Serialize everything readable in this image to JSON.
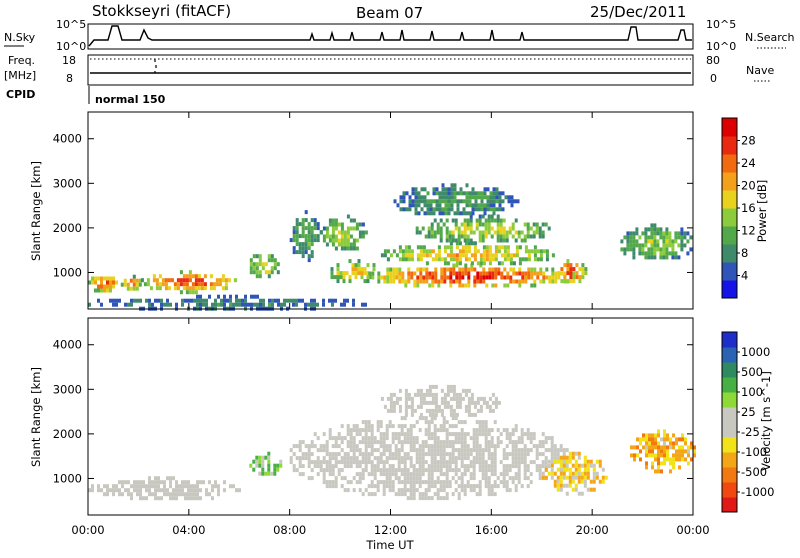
{
  "header": {
    "title": "Stokkseyri (fitACF)",
    "beam": "Beam 07",
    "date": "25/Dec/2011"
  },
  "noise_panel": {
    "left_label": "N.Sky",
    "right_label": "N.Search",
    "left_ticks": [
      "10^5",
      "10^0"
    ],
    "right_ticks": [
      "10^5",
      "10^0"
    ]
  },
  "freq_panel": {
    "left_label_1": "Freq.",
    "left_label_2": "[MHz]",
    "right_label": "Nave",
    "left_ticks": [
      "18",
      "8"
    ],
    "right_ticks": [
      "80",
      "0"
    ]
  },
  "cpid_panel": {
    "label": "CPID",
    "mode": "normal 150"
  },
  "chart_data": [
    {
      "type": "heatmap",
      "name": "power",
      "ylabel": "Slant Range [km]",
      "ylim": [
        180,
        4600
      ],
      "yticks": [
        "1000",
        "2000",
        "3000",
        "4000"
      ],
      "xlim": [
        "00:00",
        "24:00"
      ],
      "colorbar_label": "Power [dB]",
      "colorbar_ticks": [
        "4",
        "8",
        "12",
        "16",
        "20",
        "24",
        "28"
      ],
      "colors": [
        "#1414e6",
        "#2f55b8",
        "#3f8a6a",
        "#52a84a",
        "#8ccc3c",
        "#e8d21e",
        "#f3a01a",
        "#f26a10",
        "#ea2a10",
        "#dc0000"
      ],
      "regions": [
        {
          "t0": 0.0,
          "t1": 1.3,
          "r0": 600,
          "r1": 1000,
          "value": 24
        },
        {
          "t0": 1.3,
          "t1": 2.1,
          "r0": 650,
          "r1": 950,
          "value": 22
        },
        {
          "t0": 2.1,
          "t1": 5.9,
          "r0": 600,
          "r1": 1050,
          "value": 25
        },
        {
          "t0": 6.3,
          "t1": 7.6,
          "r0": 900,
          "r1": 1500,
          "value": 16
        },
        {
          "t0": 8.0,
          "t1": 9.2,
          "r0": 1300,
          "r1": 2400,
          "value": 10
        },
        {
          "t0": 9.2,
          "t1": 11.0,
          "r0": 1500,
          "r1": 2300,
          "value": 14
        },
        {
          "t0": 9.5,
          "t1": 11.5,
          "r0": 800,
          "r1": 1300,
          "value": 18
        },
        {
          "t0": 11.0,
          "t1": 19.3,
          "r0": 700,
          "r1": 1200,
          "value": 27
        },
        {
          "t0": 11.5,
          "t1": 18.5,
          "r0": 1200,
          "r1": 1700,
          "value": 19
        },
        {
          "t0": 13.0,
          "t1": 18.3,
          "r0": 1700,
          "r1": 2300,
          "value": 15
        },
        {
          "t0": 12.0,
          "t1": 17.0,
          "r0": 2300,
          "r1": 3000,
          "value": 9
        },
        {
          "t0": 18.5,
          "t1": 19.7,
          "r0": 800,
          "r1": 1300,
          "value": 26
        },
        {
          "t0": 21.0,
          "t1": 24.0,
          "r0": 1300,
          "r1": 2100,
          "value": 13
        },
        {
          "t0": 0.0,
          "t1": 11.0,
          "r0": 200,
          "r1": 500,
          "value": 6
        }
      ]
    },
    {
      "type": "heatmap",
      "name": "velocity",
      "ylabel": "Slant Range [km]",
      "ylim": [
        180,
        4600
      ],
      "yticks": [
        "1000",
        "2000",
        "3000",
        "4000"
      ],
      "xlim": [
        "00:00",
        "24:00"
      ],
      "xlabel": "Time UT",
      "xticks": [
        "00:00",
        "04:00",
        "08:00",
        "12:00",
        "16:00",
        "20:00",
        "00:00"
      ],
      "colorbar_label": "Velocity [m s^-1]",
      "colorbar_ticks": [
        "1000",
        "500",
        "100",
        "25",
        "-25",
        "-100",
        "-500",
        "-1000"
      ],
      "colors": [
        "#1e2ec8",
        "#2a62b4",
        "#2f8a62",
        "#46b044",
        "#8ed838",
        "#c8c8c0",
        "#c8c8c0",
        "#f2e21a",
        "#f3a618",
        "#f27812",
        "#f04810",
        "#e01818"
      ],
      "regions": [
        {
          "t0": 0.0,
          "t1": 6.0,
          "r0": 550,
          "r1": 1050,
          "value": 0
        },
        {
          "t0": 6.4,
          "t1": 7.6,
          "r0": 1100,
          "r1": 1600,
          "value": 300
        },
        {
          "t0": 8.0,
          "t1": 19.0,
          "r0": 600,
          "r1": 2400,
          "value": 0
        },
        {
          "t0": 11.5,
          "t1": 16.5,
          "r0": 2400,
          "r1": 3100,
          "value": 0
        },
        {
          "t0": 18.0,
          "t1": 20.5,
          "r0": 700,
          "r1": 1600,
          "value": -300
        },
        {
          "t0": 21.5,
          "t1": 24.0,
          "r0": 1200,
          "r1": 2100,
          "value": -400
        }
      ]
    }
  ]
}
